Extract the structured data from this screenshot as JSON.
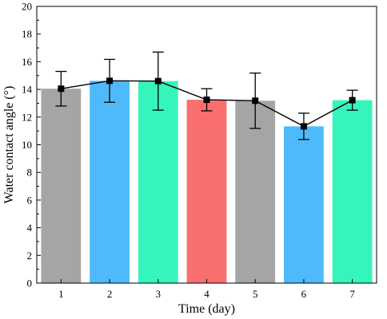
{
  "chart_data": {
    "type": "bar",
    "categories": [
      "1",
      "2",
      "3",
      "4",
      "5",
      "6",
      "7"
    ],
    "values": [
      14.05,
      14.62,
      14.6,
      13.25,
      13.18,
      11.33,
      13.22
    ],
    "errors": [
      1.25,
      1.55,
      2.1,
      0.8,
      2.0,
      0.95,
      0.72
    ],
    "colors": [
      "#a5a5a5",
      "#4fbafb",
      "#36f5bc",
      "#f96f6f",
      "#a5a5a5",
      "#4fbafb",
      "#36f5bc"
    ],
    "line_overlay": true,
    "xlabel": "Time (day)",
    "ylabel": "Water contact angle (°)",
    "ylim": [
      0,
      20
    ],
    "yticks": [
      "0",
      "2",
      "4",
      "6",
      "8",
      "10",
      "12",
      "14",
      "16",
      "18",
      "20"
    ],
    "grid": false
  }
}
